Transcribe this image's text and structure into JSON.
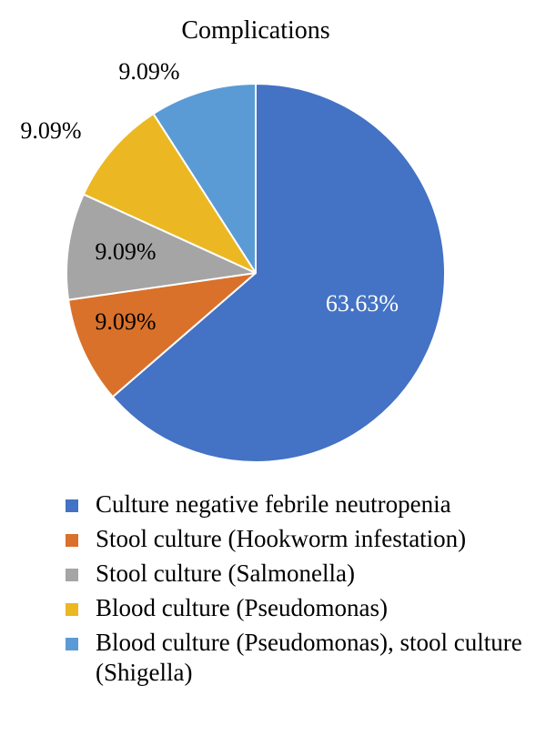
{
  "chart_data": {
    "type": "pie",
    "title": "Complications",
    "categories": [
      "Culture negative febrile neutropenia",
      "Stool culture (Hookworm infestation)",
      "Stool culture (Salmonella)",
      "Blood culture (Pseudomonas)",
      "Blood culture (Pseudomonas), stool culture (Shigella)"
    ],
    "values": [
      63.63,
      9.09,
      9.09,
      9.09,
      9.09
    ],
    "data_labels": [
      "63.63%",
      "9.09%",
      "9.09%",
      "9.09%",
      "9.09%"
    ],
    "colors": [
      "#4472c4",
      "#d9712b",
      "#a5a5a5",
      "#ebb823",
      "#5b9bd5"
    ],
    "label_colors": [
      "#ffffff",
      "#000000",
      "#000000",
      "#000000",
      "#000000"
    ],
    "legend_position": "bottom"
  }
}
